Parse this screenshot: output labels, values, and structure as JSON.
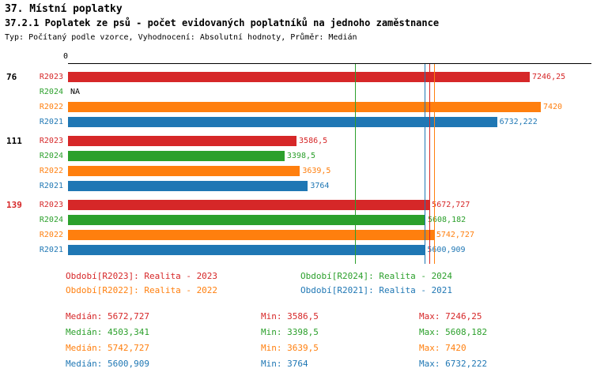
{
  "title": "37. Místní poplatky",
  "subtitle": "37.2.1 Poplatek ze psů - počet evidovaných poplatníků na jednoho zaměstnance",
  "meta": "Typ: Počítaný podle vzorce, Vyhodnocení: Absolutní hodnoty, Průměr: Medián",
  "axis": {
    "zero_label": "0"
  },
  "colors": {
    "R2023": "#d62728",
    "R2024": "#2ca02c",
    "R2022": "#ff7f0e",
    "R2021": "#1f77b4"
  },
  "chart_data": {
    "type": "bar",
    "orientation": "horizontal",
    "xlim": [
      0,
      7420
    ],
    "series_order": [
      "R2023",
      "R2024",
      "R2022",
      "R2021"
    ],
    "groups": [
      {
        "label": "76",
        "label_color": "#000000",
        "bars": [
          {
            "series": "R2023",
            "value": 7246.25,
            "value_label": "7246,25"
          },
          {
            "series": "R2024",
            "value": null,
            "value_label": "NA"
          },
          {
            "series": "R2022",
            "value": 7420,
            "value_label": "7420"
          },
          {
            "series": "R2021",
            "value": 6732.222,
            "value_label": "6732,222"
          }
        ]
      },
      {
        "label": "111",
        "label_color": "#000000",
        "bars": [
          {
            "series": "R2023",
            "value": 3586.5,
            "value_label": "3586,5"
          },
          {
            "series": "R2024",
            "value": 3398.5,
            "value_label": "3398,5"
          },
          {
            "series": "R2022",
            "value": 3639.5,
            "value_label": "3639,5"
          },
          {
            "series": "R2021",
            "value": 3764,
            "value_label": "3764"
          }
        ]
      },
      {
        "label": "139",
        "label_color": "#d62728",
        "bars": [
          {
            "series": "R2023",
            "value": 5672.727,
            "value_label": "5672,727"
          },
          {
            "series": "R2024",
            "value": 5608.182,
            "value_label": "5608,182"
          },
          {
            "series": "R2022",
            "value": 5742.727,
            "value_label": "5742,727"
          },
          {
            "series": "R2021",
            "value": 5600.909,
            "value_label": "5600,909"
          }
        ]
      }
    ],
    "medians": [
      {
        "series": "R2023",
        "value": 5672.727
      },
      {
        "series": "R2024",
        "value": 4503.341
      },
      {
        "series": "R2022",
        "value": 5742.727
      },
      {
        "series": "R2021",
        "value": 5600.909
      }
    ]
  },
  "legend": [
    {
      "series": "R2023",
      "label": "Období[R2023]: Realita - 2023"
    },
    {
      "series": "R2024",
      "label": "Období[R2024]: Realita - 2024"
    },
    {
      "series": "R2022",
      "label": "Období[R2022]: Realita - 2022"
    },
    {
      "series": "R2021",
      "label": "Období[R2021]: Realita - 2021"
    }
  ],
  "stats": [
    {
      "series": "R2023",
      "median": "Medián: 5672,727",
      "min": "Min: 3586,5",
      "max": "Max: 7246,25"
    },
    {
      "series": "R2024",
      "median": "Medián: 4503,341",
      "min": "Min: 3398,5",
      "max": "Max: 5608,182"
    },
    {
      "series": "R2022",
      "median": "Medián: 5742,727",
      "min": "Min: 3639,5",
      "max": "Max: 7420"
    },
    {
      "series": "R2021",
      "median": "Medián: 5600,909",
      "min": "Min: 3764",
      "max": "Max: 6732,222"
    }
  ]
}
